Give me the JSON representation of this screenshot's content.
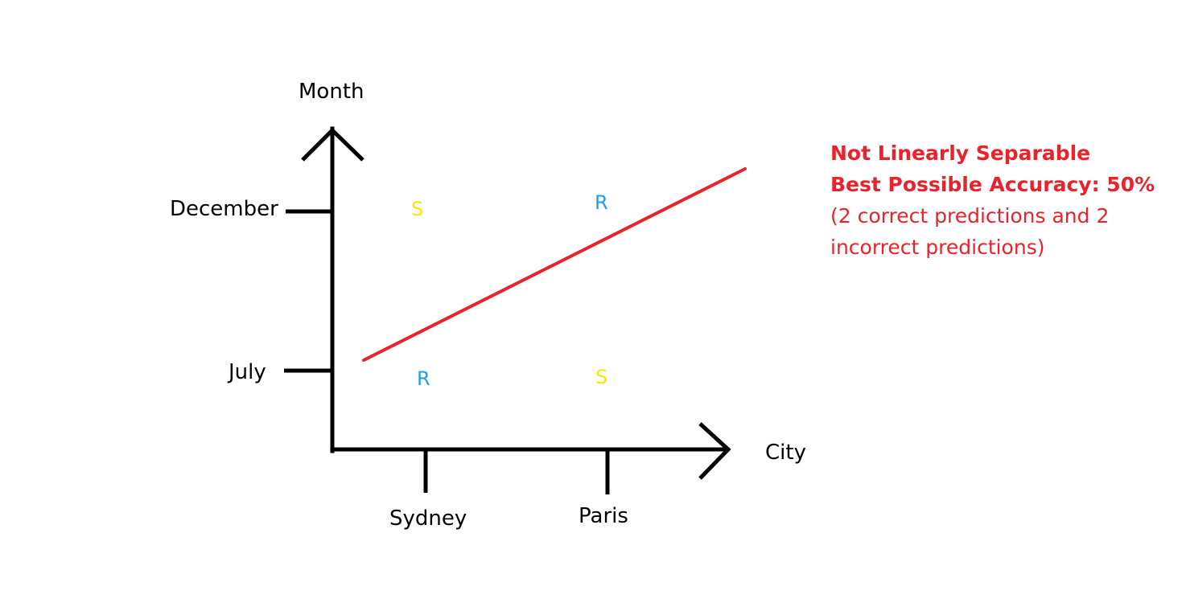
{
  "colors": {
    "axis": "#000000",
    "separator_line": "#e8232b",
    "annotation_text": "#e8232b",
    "class_S": "#ffe600",
    "class_R": "#1ea0e6"
  },
  "axes": {
    "y_label": "Month",
    "x_label": "City",
    "y_ticks": [
      "December",
      "July"
    ],
    "x_ticks": [
      "Sydney",
      "Paris"
    ]
  },
  "points": [
    {
      "label": "S",
      "class": "S",
      "city": "Sydney",
      "month": "December"
    },
    {
      "label": "R",
      "class": "R",
      "city": "Paris",
      "month": "December"
    },
    {
      "label": "R",
      "class": "R",
      "city": "Sydney",
      "month": "July"
    },
    {
      "label": "S",
      "class": "S",
      "city": "Paris",
      "month": "July"
    }
  ],
  "annotation": {
    "line1": "Not Linearly Separable",
    "line2": "Best Possible Accuracy: 50%",
    "line3": "(2 correct predictions and 2 incorrect predictions)"
  }
}
